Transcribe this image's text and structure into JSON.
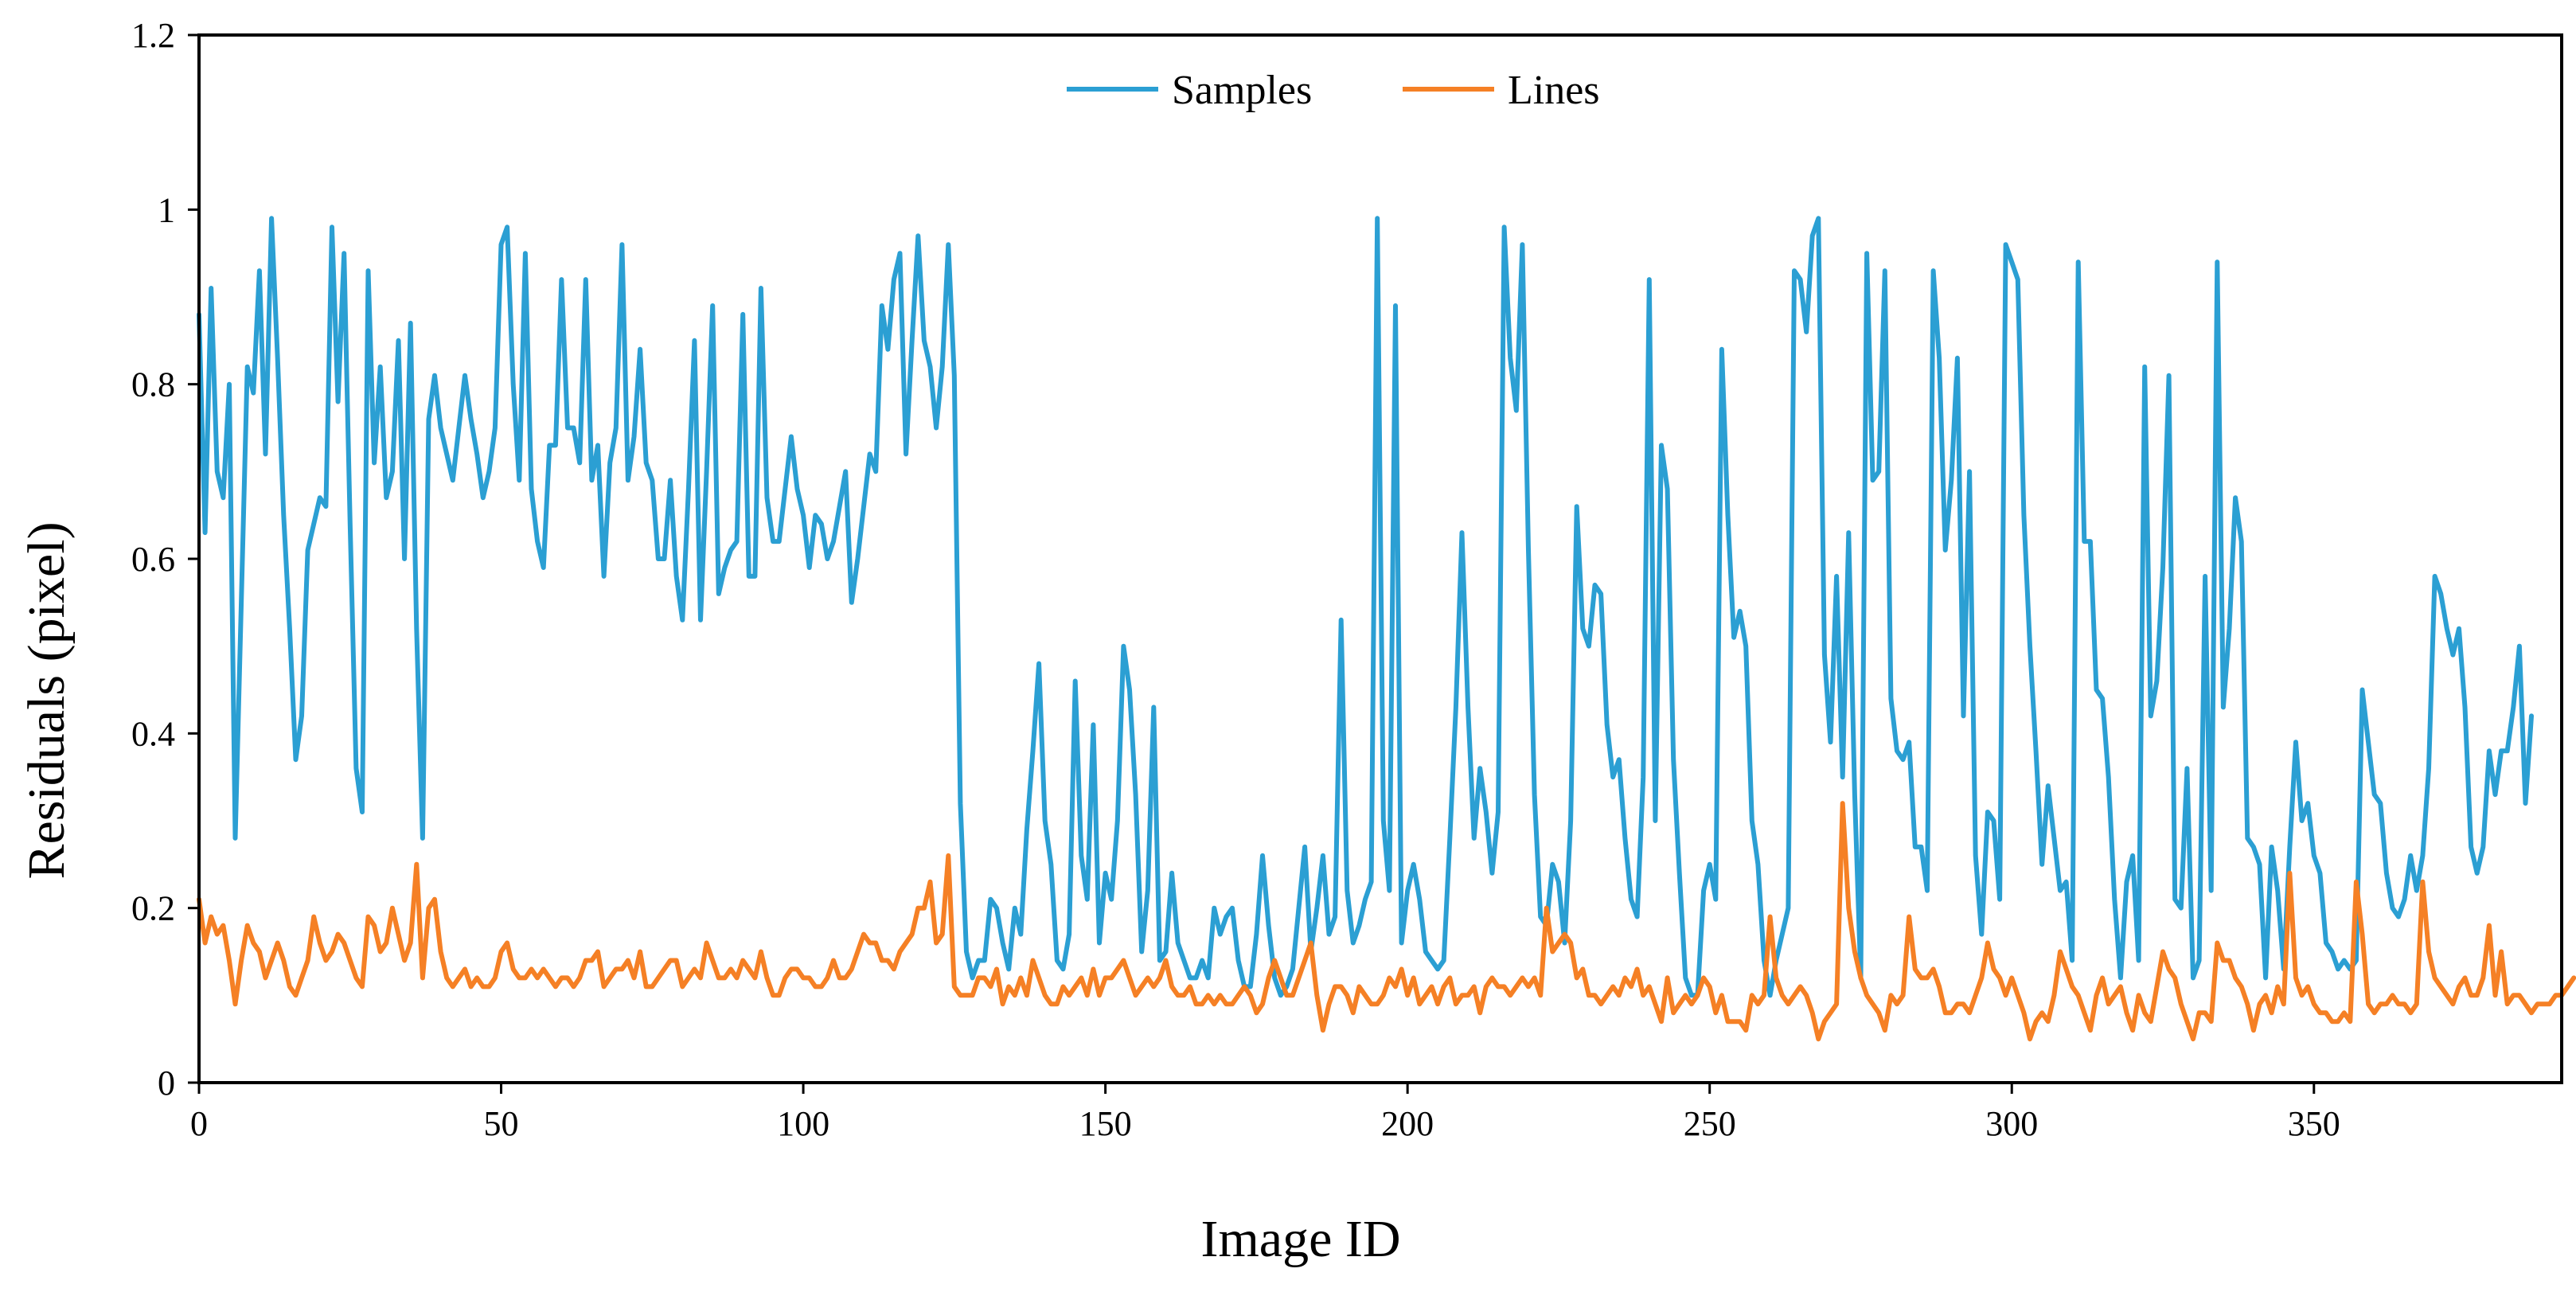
{
  "colors": {
    "samples": "#2B9FD3",
    "lines": "#F58025",
    "axis": "#000000",
    "background": "#FFFFFF"
  },
  "chart_data": {
    "type": "line",
    "title": "",
    "xlabel": "Image ID",
    "ylabel": "Residuals (pixel)",
    "xlim": [
      0,
      391
    ],
    "ylim": [
      0,
      1.2
    ],
    "x_ticks": [
      "0",
      "50",
      "100",
      "150",
      "200",
      "250",
      "300",
      "350"
    ],
    "y_ticks": [
      "0",
      "0.2",
      "0.4",
      "0.6",
      "0.8",
      "1",
      "1.2"
    ],
    "grid": false,
    "legend": "top-center",
    "series": [
      {
        "name": "Samples",
        "color": "#2B9FD3",
        "y": [
          0.88,
          0.63,
          0.91,
          0.7,
          0.67,
          0.8,
          0.28,
          0.55,
          0.82,
          0.79,
          0.93,
          0.72,
          0.99,
          0.83,
          0.65,
          0.52,
          0.37,
          0.42,
          0.61,
          0.64,
          0.67,
          0.66,
          0.98,
          0.78,
          0.95,
          0.64,
          0.36,
          0.31,
          0.93,
          0.71,
          0.82,
          0.67,
          0.7,
          0.85,
          0.6,
          0.87,
          0.52,
          0.28,
          0.76,
          0.81,
          0.75,
          0.72,
          0.69,
          0.75,
          0.81,
          0.76,
          0.72,
          0.67,
          0.7,
          0.75,
          0.96,
          0.98,
          0.8,
          0.69,
          0.95,
          0.68,
          0.62,
          0.59,
          0.73,
          0.73,
          0.92,
          0.75,
          0.75,
          0.71,
          0.92,
          0.69,
          0.73,
          0.58,
          0.71,
          0.75,
          0.96,
          0.69,
          0.74,
          0.84,
          0.71,
          0.69,
          0.6,
          0.6,
          0.69,
          0.58,
          0.53,
          0.68,
          0.85,
          0.53,
          0.7,
          0.89,
          0.56,
          0.59,
          0.61,
          0.62,
          0.88,
          0.58,
          0.58,
          0.91,
          0.67,
          0.62,
          0.62,
          0.68,
          0.74,
          0.68,
          0.65,
          0.59,
          0.65,
          0.64,
          0.6,
          0.62,
          0.66,
          0.7,
          0.55,
          0.6,
          0.66,
          0.72,
          0.7,
          0.89,
          0.84,
          0.92,
          0.95,
          0.72,
          0.85,
          0.97,
          0.85,
          0.82,
          0.75,
          0.82,
          0.96,
          0.81,
          0.32,
          0.15,
          0.12,
          0.14,
          0.14,
          0.21,
          0.2,
          0.16,
          0.13,
          0.2,
          0.17,
          0.29,
          0.38,
          0.48,
          0.3,
          0.25,
          0.14,
          0.13,
          0.17,
          0.46,
          0.26,
          0.21,
          0.41,
          0.16,
          0.24,
          0.21,
          0.3,
          0.5,
          0.45,
          0.33,
          0.15,
          0.22,
          0.43,
          0.14,
          0.15,
          0.24,
          0.16,
          0.14,
          0.12,
          0.12,
          0.14,
          0.12,
          0.2,
          0.17,
          0.19,
          0.2,
          0.14,
          0.11,
          0.11,
          0.17,
          0.26,
          0.18,
          0.12,
          0.1,
          0.11,
          0.13,
          0.2,
          0.27,
          0.15,
          0.2,
          0.26,
          0.17,
          0.19,
          0.53,
          0.22,
          0.16,
          0.18,
          0.21,
          0.23,
          0.99,
          0.3,
          0.22,
          0.89,
          0.16,
          0.22,
          0.25,
          0.21,
          0.15,
          0.14,
          0.13,
          0.14,
          0.28,
          0.43,
          0.63,
          0.43,
          0.28,
          0.36,
          0.31,
          0.24,
          0.31,
          0.98,
          0.83,
          0.77,
          0.96,
          0.61,
          0.33,
          0.19,
          0.18,
          0.25,
          0.23,
          0.16,
          0.3,
          0.66,
          0.52,
          0.5,
          0.57,
          0.56,
          0.41,
          0.35,
          0.37,
          0.28,
          0.21,
          0.19,
          0.35,
          0.92,
          0.3,
          0.73,
          0.68,
          0.37,
          0.24,
          0.12,
          0.1,
          0.1,
          0.22,
          0.25,
          0.21,
          0.84,
          0.65,
          0.51,
          0.54,
          0.5,
          0.3,
          0.25,
          0.14,
          0.1,
          0.14,
          0.17,
          0.2,
          0.93,
          0.92,
          0.86,
          0.97,
          0.99,
          0.49,
          0.39,
          0.58,
          0.35,
          0.63,
          0.33,
          0.12,
          0.95,
          0.69,
          0.7,
          0.93,
          0.44,
          0.38,
          0.37,
          0.39,
          0.27,
          0.27,
          0.22,
          0.93,
          0.83,
          0.61,
          0.69,
          0.83,
          0.42,
          0.7,
          0.26,
          0.17,
          0.31,
          0.3,
          0.21,
          0.96,
          0.94,
          0.92,
          0.65,
          0.5,
          0.38,
          0.25,
          0.34,
          0.28,
          0.22,
          0.23,
          0.14,
          0.94,
          0.62,
          0.62,
          0.45,
          0.44,
          0.35,
          0.21,
          0.12,
          0.23,
          0.26,
          0.14,
          0.82,
          0.42,
          0.46,
          0.59,
          0.81,
          0.21,
          0.2,
          0.36,
          0.12,
          0.14,
          0.58,
          0.22,
          0.94,
          0.43,
          0.52,
          0.67,
          0.62,
          0.28,
          0.27,
          0.25,
          0.12,
          0.27,
          0.22,
          0.13,
          0.27,
          0.39,
          0.3,
          0.32,
          0.26,
          0.24,
          0.16,
          0.15,
          0.13,
          0.14,
          0.13,
          0.14,
          0.45,
          0.39,
          0.33,
          0.32,
          0.24,
          0.2,
          0.19,
          0.21,
          0.26,
          0.22,
          0.26,
          0.36,
          0.58,
          0.56,
          0.52,
          0.49,
          0.52,
          0.43,
          0.27,
          0.24,
          0.27,
          0.38,
          0.33,
          0.38,
          0.38,
          0.43,
          0.5,
          0.32,
          0.42
        ]
      },
      {
        "name": "Lines",
        "color": "#F58025",
        "y": [
          0.21,
          0.16,
          0.19,
          0.17,
          0.18,
          0.14,
          0.09,
          0.14,
          0.18,
          0.16,
          0.15,
          0.12,
          0.14,
          0.16,
          0.14,
          0.11,
          0.1,
          0.12,
          0.14,
          0.19,
          0.16,
          0.14,
          0.15,
          0.17,
          0.16,
          0.14,
          0.12,
          0.11,
          0.19,
          0.18,
          0.15,
          0.16,
          0.2,
          0.17,
          0.14,
          0.16,
          0.25,
          0.12,
          0.2,
          0.21,
          0.15,
          0.12,
          0.11,
          0.12,
          0.13,
          0.11,
          0.12,
          0.11,
          0.11,
          0.12,
          0.15,
          0.16,
          0.13,
          0.12,
          0.12,
          0.13,
          0.12,
          0.13,
          0.12,
          0.11,
          0.12,
          0.12,
          0.11,
          0.12,
          0.14,
          0.14,
          0.15,
          0.11,
          0.12,
          0.13,
          0.13,
          0.14,
          0.12,
          0.15,
          0.11,
          0.11,
          0.12,
          0.13,
          0.14,
          0.14,
          0.11,
          0.12,
          0.13,
          0.12,
          0.16,
          0.14,
          0.12,
          0.12,
          0.13,
          0.12,
          0.14,
          0.13,
          0.12,
          0.15,
          0.12,
          0.1,
          0.1,
          0.12,
          0.13,
          0.13,
          0.12,
          0.12,
          0.11,
          0.11,
          0.12,
          0.14,
          0.12,
          0.12,
          0.13,
          0.15,
          0.17,
          0.16,
          0.16,
          0.14,
          0.14,
          0.13,
          0.15,
          0.16,
          0.17,
          0.2,
          0.2,
          0.23,
          0.16,
          0.17,
          0.26,
          0.11,
          0.1,
          0.1,
          0.1,
          0.12,
          0.12,
          0.11,
          0.13,
          0.09,
          0.11,
          0.1,
          0.12,
          0.1,
          0.14,
          0.12,
          0.1,
          0.09,
          0.09,
          0.11,
          0.1,
          0.11,
          0.12,
          0.1,
          0.13,
          0.1,
          0.12,
          0.12,
          0.13,
          0.14,
          0.12,
          0.1,
          0.11,
          0.12,
          0.11,
          0.12,
          0.14,
          0.11,
          0.1,
          0.1,
          0.11,
          0.09,
          0.09,
          0.1,
          0.09,
          0.1,
          0.09,
          0.09,
          0.1,
          0.11,
          0.1,
          0.08,
          0.09,
          0.12,
          0.14,
          0.12,
          0.1,
          0.1,
          0.12,
          0.14,
          0.16,
          0.1,
          0.06,
          0.09,
          0.11,
          0.11,
          0.1,
          0.08,
          0.11,
          0.1,
          0.09,
          0.09,
          0.1,
          0.12,
          0.11,
          0.13,
          0.1,
          0.12,
          0.09,
          0.1,
          0.11,
          0.09,
          0.11,
          0.12,
          0.09,
          0.1,
          0.1,
          0.11,
          0.08,
          0.11,
          0.12,
          0.11,
          0.11,
          0.1,
          0.11,
          0.12,
          0.11,
          0.12,
          0.1,
          0.2,
          0.15,
          0.16,
          0.17,
          0.16,
          0.12,
          0.13,
          0.1,
          0.1,
          0.09,
          0.1,
          0.11,
          0.1,
          0.12,
          0.11,
          0.13,
          0.1,
          0.11,
          0.09,
          0.07,
          0.12,
          0.08,
          0.09,
          0.1,
          0.09,
          0.1,
          0.12,
          0.11,
          0.08,
          0.1,
          0.07,
          0.07,
          0.07,
          0.06,
          0.1,
          0.09,
          0.1,
          0.19,
          0.12,
          0.1,
          0.09,
          0.1,
          0.11,
          0.1,
          0.08,
          0.05,
          0.07,
          0.08,
          0.09,
          0.32,
          0.2,
          0.15,
          0.12,
          0.1,
          0.09,
          0.08,
          0.06,
          0.1,
          0.09,
          0.1,
          0.19,
          0.13,
          0.12,
          0.12,
          0.13,
          0.11,
          0.08,
          0.08,
          0.09,
          0.09,
          0.08,
          0.1,
          0.12,
          0.16,
          0.13,
          0.12,
          0.1,
          0.12,
          0.1,
          0.08,
          0.05,
          0.07,
          0.08,
          0.07,
          0.1,
          0.15,
          0.13,
          0.11,
          0.1,
          0.08,
          0.06,
          0.1,
          0.12,
          0.09,
          0.1,
          0.11,
          0.08,
          0.06,
          0.1,
          0.08,
          0.07,
          0.11,
          0.15,
          0.13,
          0.12,
          0.09,
          0.07,
          0.05,
          0.08,
          0.08,
          0.07,
          0.16,
          0.14,
          0.14,
          0.12,
          0.11,
          0.09,
          0.06,
          0.09,
          0.1,
          0.08,
          0.11,
          0.09,
          0.24,
          0.12,
          0.1,
          0.11,
          0.09,
          0.08,
          0.08,
          0.07,
          0.07,
          0.08,
          0.07,
          0.23,
          0.17,
          0.09,
          0.08,
          0.09,
          0.09,
          0.1,
          0.09,
          0.09,
          0.08,
          0.09,
          0.23,
          0.15,
          0.12,
          0.11,
          0.1,
          0.09,
          0.11,
          0.12,
          0.1,
          0.1,
          0.12,
          0.18,
          0.1,
          0.15,
          0.09,
          0.1,
          0.1,
          0.09,
          0.08,
          0.09,
          0.09,
          0.09,
          0.1,
          0.1,
          0.11,
          0.12
        ]
      }
    ]
  }
}
